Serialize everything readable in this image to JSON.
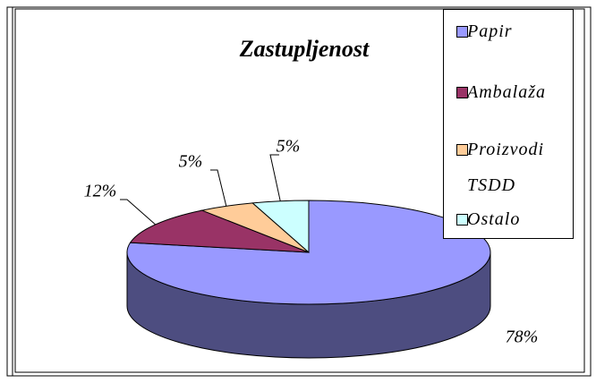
{
  "chart_data": {
    "type": "pie",
    "title": "Zastupljenost",
    "categories": [
      "Papir",
      "Ambalaža",
      "Proizvodi TSDD",
      "Ostalo"
    ],
    "values": [
      78,
      12,
      5,
      5
    ],
    "value_labels": [
      "78%",
      "12%",
      "5%",
      "5%"
    ],
    "colors": [
      "#9999ff",
      "#993366",
      "#ffcc99",
      "#ccffff"
    ],
    "legend": "right"
  }
}
